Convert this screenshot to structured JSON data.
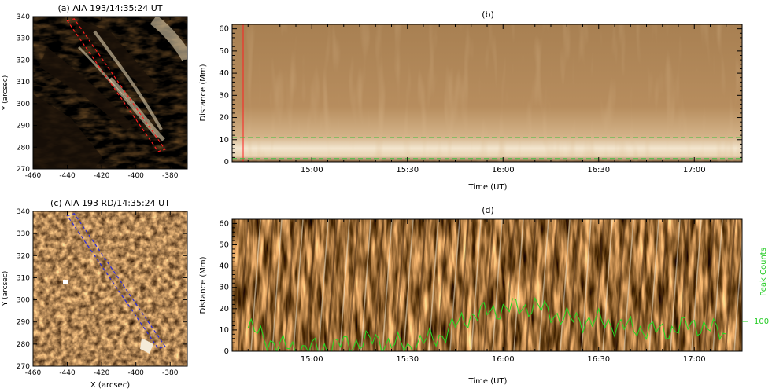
{
  "figure": {
    "panel_a": {
      "title": "(a) AIA 193/14:35:24 UT",
      "xlim": [
        -460,
        -370
      ],
      "ylim": [
        270,
        340
      ],
      "xticks": [
        "-460",
        "-440",
        "-420",
        "-400",
        "-380"
      ],
      "yticks": [
        "270",
        "280",
        "290",
        "300",
        "310",
        "320",
        "330",
        "340"
      ],
      "ylabel": "Y (arcsec)",
      "slit_color": "#ff2020"
    },
    "panel_c": {
      "title": "(c) AIA 193 RD/14:35:24 UT",
      "xlim": [
        -460,
        -370
      ],
      "ylim": [
        270,
        340
      ],
      "xticks": [
        "-460",
        "-440",
        "-420",
        "-400",
        "-380"
      ],
      "yticks": [
        "270",
        "280",
        "290",
        "300",
        "310",
        "320",
        "330",
        "340"
      ],
      "xlabel": "X (arcsec)",
      "ylabel": "Y (arcsec)",
      "slit_color": "#2020d0"
    },
    "panel_b": {
      "title": "(b)",
      "ylim": [
        0,
        62
      ],
      "yticks": [
        "0",
        "10",
        "20",
        "30",
        "40",
        "50",
        "60"
      ],
      "xticks": [
        "15:00",
        "15:30",
        "16:00",
        "16:30",
        "17:00"
      ],
      "xlabel": "Time (UT)",
      "ylabel": "Distance (Mm)",
      "guide_lines_mm": [
        1.5,
        11
      ],
      "marker_color": "#ff2020",
      "guide_color": "#40c040"
    },
    "panel_d": {
      "title": "(d)",
      "ylim": [
        0,
        62
      ],
      "yticks": [
        "0",
        "10",
        "20",
        "30",
        "40",
        "50",
        "60"
      ],
      "xticks": [
        "15:00",
        "15:30",
        "16:00",
        "16:30",
        "17:00"
      ],
      "xlabel": "Time (UT)",
      "ylabel": "Distance (Mm)",
      "right_label": "Peak Counts",
      "right_tick": "100",
      "curve_color": "#22dd22"
    },
    "slit_a": [
      [
        -440,
        338
      ],
      [
        -436,
        339
      ],
      [
        -383,
        279
      ],
      [
        -387,
        278
      ]
    ],
    "slit_c": [
      [
        -440,
        338
      ],
      [
        -436,
        339
      ],
      [
        -383,
        279
      ],
      [
        -387,
        278
      ]
    ]
  },
  "chart_data": [
    {
      "type": "line",
      "title": "(d)",
      "xlabel": "Time (UT)",
      "ylabel": "Peak Counts",
      "x": [
        "14:40",
        "14:50",
        "15:00",
        "15:10",
        "15:20",
        "15:30",
        "15:40",
        "15:50",
        "16:00",
        "16:10",
        "16:20",
        "16:30",
        "16:40",
        "16:50",
        "17:00",
        "17:10"
      ],
      "values": [
        95,
        80,
        78,
        82,
        85,
        80,
        88,
        105,
        110,
        112,
        102,
        100,
        95,
        92,
        98,
        90
      ]
    }
  ]
}
